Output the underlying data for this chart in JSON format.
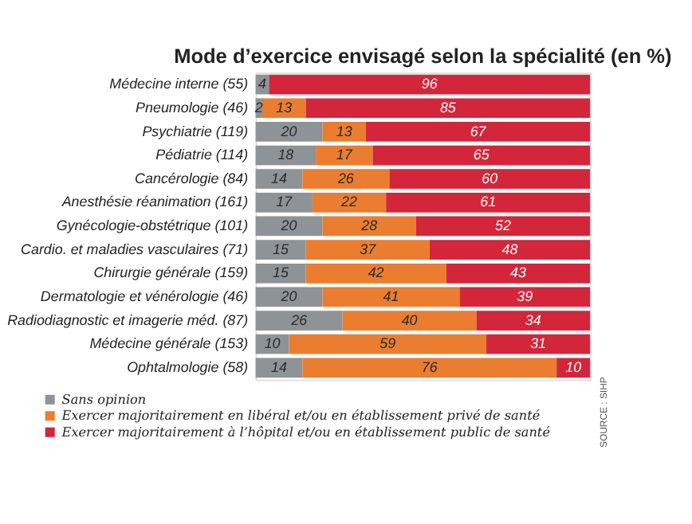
{
  "chart_data": {
    "type": "bar",
    "orientation": "horizontal",
    "stacked": true,
    "title": "Mode d’exercice envisagé selon la spécialité (en %)",
    "categories": [
      "Médecine interne (55)",
      "Pneumologie (46)",
      "Psychiatrie (119)",
      "Pédiatrie (114)",
      "Cancérologie (84)",
      "Anesthésie réanimation (161)",
      "Gynécologie-obstétrique (101)",
      "Cardio. et maladies vasculaires (71)",
      "Chirurgie générale (159)",
      "Dermatologie et vénérologie (46)",
      "Radiodiagnostic et imagerie méd. (87)",
      "Médecine générale (153)",
      "Ophtalmologie (58)"
    ],
    "series": [
      {
        "name": "Sans opinion",
        "color": "#8e9398",
        "values": [
          4,
          2,
          20,
          18,
          14,
          17,
          20,
          15,
          15,
          20,
          26,
          10,
          14
        ]
      },
      {
        "name": "Exercer majoritairement en libéral et/ou en établissement privé de santé",
        "color": "#eb7d30",
        "values": [
          null,
          13,
          13,
          17,
          26,
          22,
          28,
          37,
          42,
          41,
          40,
          59,
          76
        ]
      },
      {
        "name": "Exercer majoritairement à l’hôpital et/ou en établissement public de santé",
        "color": "#d3263a",
        "values": [
          96,
          85,
          67,
          65,
          60,
          61,
          52,
          48,
          43,
          39,
          34,
          31,
          10
        ]
      }
    ],
    "data_labels": true,
    "legend": "bottom",
    "grid": false,
    "annotations": [
      "SOURCE : SIHP"
    ]
  }
}
